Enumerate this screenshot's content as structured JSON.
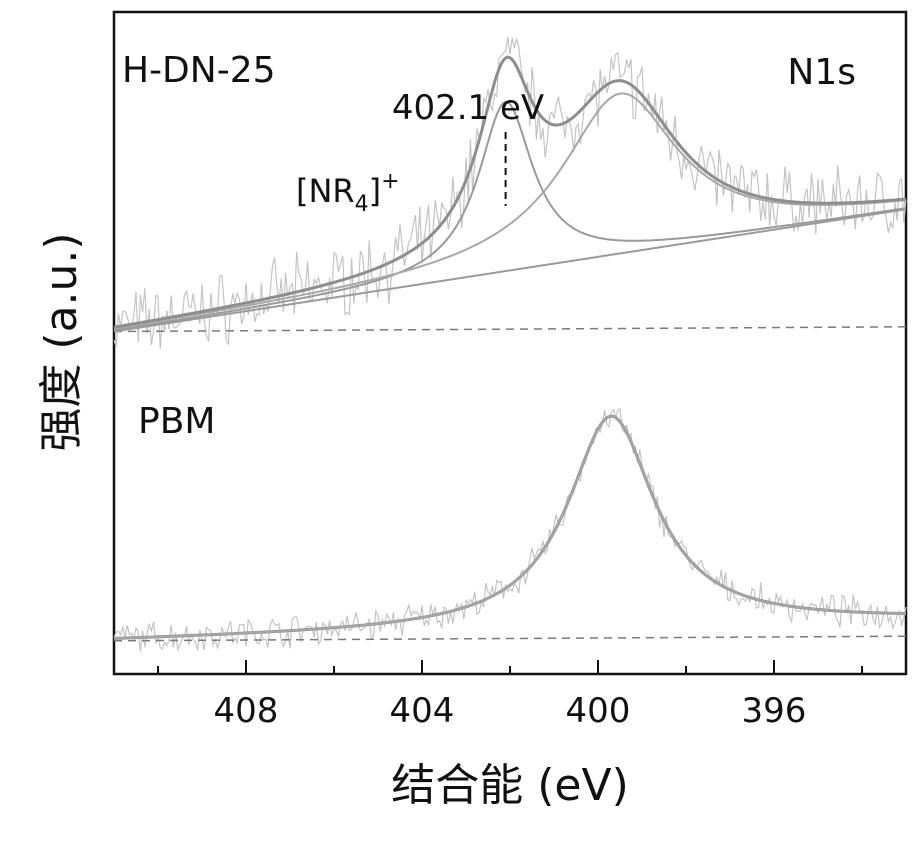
{
  "chart_data": {
    "type": "line",
    "xlabel": "结合能 (eV)",
    "ylabel": "强度 (a.u.)",
    "xlim": [
      411,
      393
    ],
    "x_axis_reversed": true,
    "xticks": [
      408,
      404,
      400,
      396
    ],
    "xtick_labels": [
      "408",
      "404",
      "400",
      "396"
    ],
    "grid": false,
    "panels": [
      {
        "name": "H-DN-25",
        "sample_label": "H-DN-25",
        "spectrum_label": "N1s",
        "annotation_peak": "402.1 eV",
        "annotation_peak_x": 402.1,
        "annotation_species_base": "[NR",
        "annotation_species_sub": "4",
        "annotation_species_close": "]",
        "annotation_species_sup": "+",
        "baseline": {
          "x0": 411,
          "y0": 0.1,
          "x1": 393,
          "y1": 0.62
        },
        "peaks": [
          {
            "center": 402.1,
            "height": 0.72,
            "fwhm": 1.5
          },
          {
            "center": 399.5,
            "height": 0.68,
            "fwhm": 3.2
          }
        ],
        "dashed_baseline_level": 0.1
      },
      {
        "name": "PBM",
        "sample_label": "PBM",
        "baseline": {
          "x0": 411,
          "y0": 0.04,
          "x1": 393,
          "y1": 0.13
        },
        "peaks": [
          {
            "center": 399.7,
            "height": 0.92,
            "fwhm": 2.4
          }
        ],
        "dashed_baseline_level": 0.04
      }
    ]
  }
}
